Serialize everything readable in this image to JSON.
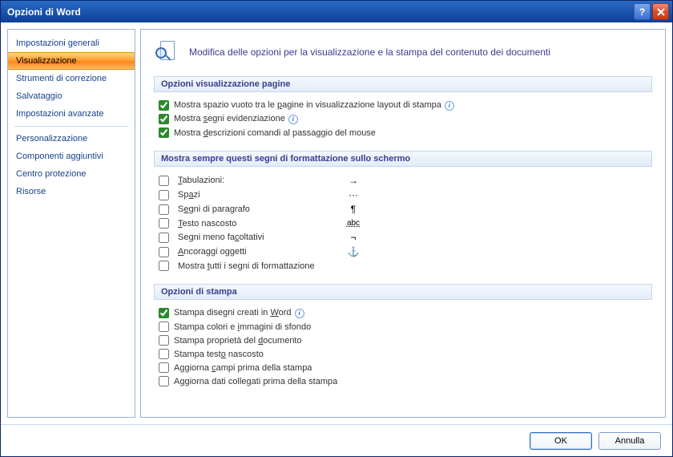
{
  "window": {
    "title": "Opzioni di Word"
  },
  "sidebar": {
    "groups": [
      [
        "Impostazioni generali",
        "Visualizzazione",
        "Strumenti di correzione",
        "Salvataggio",
        "Impostazioni avanzate"
      ],
      [
        "Personalizzazione",
        "Componenti aggiuntivi",
        "Centro protezione",
        "Risorse"
      ]
    ],
    "selected": "Visualizzazione"
  },
  "header": {
    "text": "Modifica delle opzioni per la visualizzazione e la stampa del contenuto dei documenti"
  },
  "sections": {
    "page_display": {
      "title": "Opzioni visualizzazione pagine",
      "items": [
        {
          "checked": true,
          "label_html": "Mostra spazio vuoto tra le <u>p</u>agine in visualizzazione layout di stampa",
          "info": true
        },
        {
          "checked": true,
          "label_html": "Mostra <u>s</u>egni evidenziazione",
          "info": true
        },
        {
          "checked": true,
          "label_html": "Mostra <u>d</u>escrizioni comandi al passaggio del mouse",
          "info": false
        }
      ]
    },
    "marks": {
      "title": "Mostra sempre questi segni di formattazione sullo schermo",
      "items": [
        {
          "checked": false,
          "label_html": "<u>T</u>abulazioni:",
          "symbol": "→"
        },
        {
          "checked": false,
          "label_html": "Sp<u>a</u>zi",
          "symbol": "···"
        },
        {
          "checked": false,
          "label_html": "S<u>e</u>gni di paragrafo",
          "symbol": "¶"
        },
        {
          "checked": false,
          "label_html": "<u>T</u>esto nascosto",
          "symbol": "abc",
          "strike": true
        },
        {
          "checked": false,
          "label_html": "Segni meno fa<u>c</u>oltativi",
          "symbol": "¬"
        },
        {
          "checked": false,
          "label_html": "<u>A</u>ncoraggi oggetti",
          "symbol": "⚓"
        },
        {
          "checked": false,
          "label_html": "Mostra <u>t</u>utti i segni di formattazione",
          "symbol": ""
        }
      ]
    },
    "print": {
      "title": "Opzioni di stampa",
      "items": [
        {
          "checked": true,
          "label_html": "Stampa disegni creati in <u>W</u>ord",
          "info": true
        },
        {
          "checked": false,
          "label_html": "Stampa colori e <u>i</u>mmagini di sfondo"
        },
        {
          "checked": false,
          "label_html": "Stampa proprietà del <u>d</u>ocumento"
        },
        {
          "checked": false,
          "label_html": "Stampa test<u>o</u> nascosto"
        },
        {
          "checked": false,
          "label_html": "Aggiorna <u>c</u>ampi prima della stampa"
        },
        {
          "checked": false,
          "label_html": "Aggiorna dati colle<u>g</u>ati prima della stampa"
        }
      ]
    }
  },
  "footer": {
    "ok": "OK",
    "cancel": "Annulla"
  },
  "colors": {
    "titlebar_start": "#2a6ac5",
    "titlebar_end": "#0e3f97",
    "accent_link": "#15428b",
    "section_text": "#3b3b8f",
    "selected_grad": "#ff9a2e",
    "border": "#9ab3d5"
  }
}
